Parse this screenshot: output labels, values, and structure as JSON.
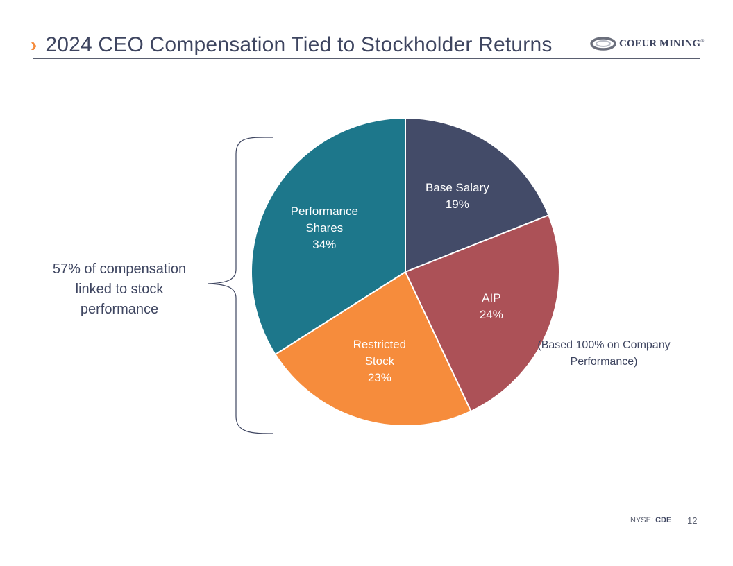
{
  "header": {
    "chevron": "›",
    "title": "2024 CEO Compensation Tied to Stockholder Returns"
  },
  "logo": {
    "name": "COEUR MINING",
    "registered": "®"
  },
  "chart_data": {
    "type": "pie",
    "title": "",
    "start_angle_deg": 0,
    "direction": "clockwise",
    "slices": [
      {
        "name": "Base Salary",
        "label_lines": [
          "Base Salary"
        ],
        "value": 19,
        "value_label": "19%",
        "color": "#434b68",
        "label_color": "#ffffff"
      },
      {
        "name": "AIP",
        "label_lines": [
          "AIP"
        ],
        "value": 24,
        "value_label": "24%",
        "color": "#ac5157",
        "label_color": "#ffffff"
      },
      {
        "name": "Restricted Stock",
        "label_lines": [
          "Restricted",
          "Stock"
        ],
        "value": 23,
        "value_label": "23%",
        "color": "#f68c3c",
        "label_color": "#ffffff"
      },
      {
        "name": "Performance Shares",
        "label_lines": [
          "Performance",
          "Shares"
        ],
        "value": 34,
        "value_label": "34%",
        "color": "#1d778b",
        "label_color": "#ffffff"
      }
    ]
  },
  "annotations": {
    "left_callout": "57% of compensation linked to stock performance",
    "aip_note": "(Based 100% on Company Performance)"
  },
  "footer": {
    "ticker_prefix": "NYSE:",
    "ticker": "CDE",
    "page_number": "12",
    "line_colors": [
      "#434b68",
      "#ac5157",
      "#f68c3c",
      "#f68c3c"
    ]
  },
  "colors": {
    "title": "#3e4560",
    "accent": "#f58a3a",
    "rule": "#5a5f70"
  }
}
